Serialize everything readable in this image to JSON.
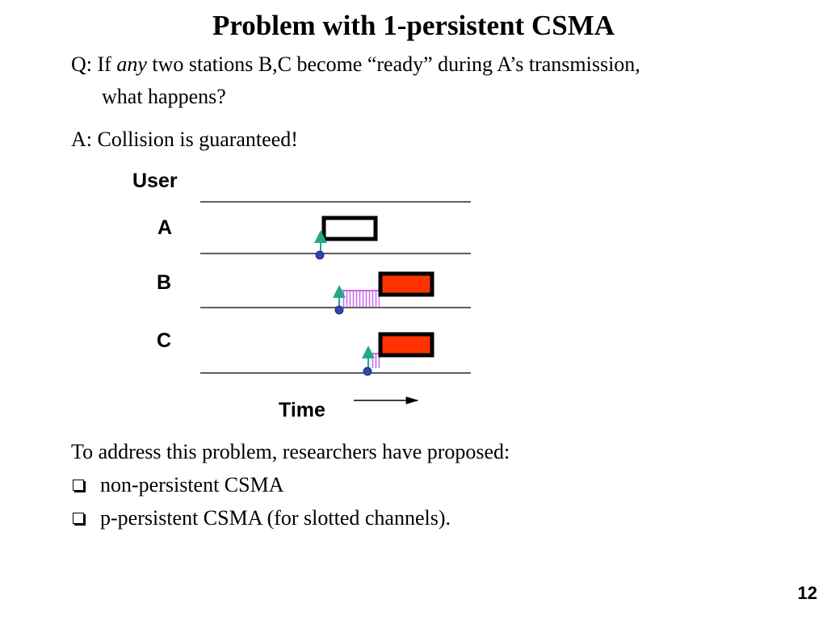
{
  "slide": {
    "title": "Problem with 1-persistent CSMA",
    "question": {
      "prefix": "Q: If ",
      "emphasis": "any",
      "rest": " two stations B,C become “ready” during A’s transmission,",
      "line2": "what happens?"
    },
    "answer": "A: Collision is guaranteed!",
    "diagram": {
      "user_label": "User",
      "rows": [
        "A",
        "B",
        "C"
      ],
      "time_label": "Time",
      "colors": {
        "frame_fill_collision": "#ff3300",
        "frame_border": "#000000",
        "dot": "#3344aa",
        "ready_arrow": "#22aa88",
        "wait_hatch": "#cc66ee"
      }
    },
    "address_intro": "To address this problem, researchers have proposed:",
    "bullets": [
      "non-persistent CSMA",
      "p-persistent CSMA (for slotted channels)."
    ],
    "page_number": "12"
  }
}
